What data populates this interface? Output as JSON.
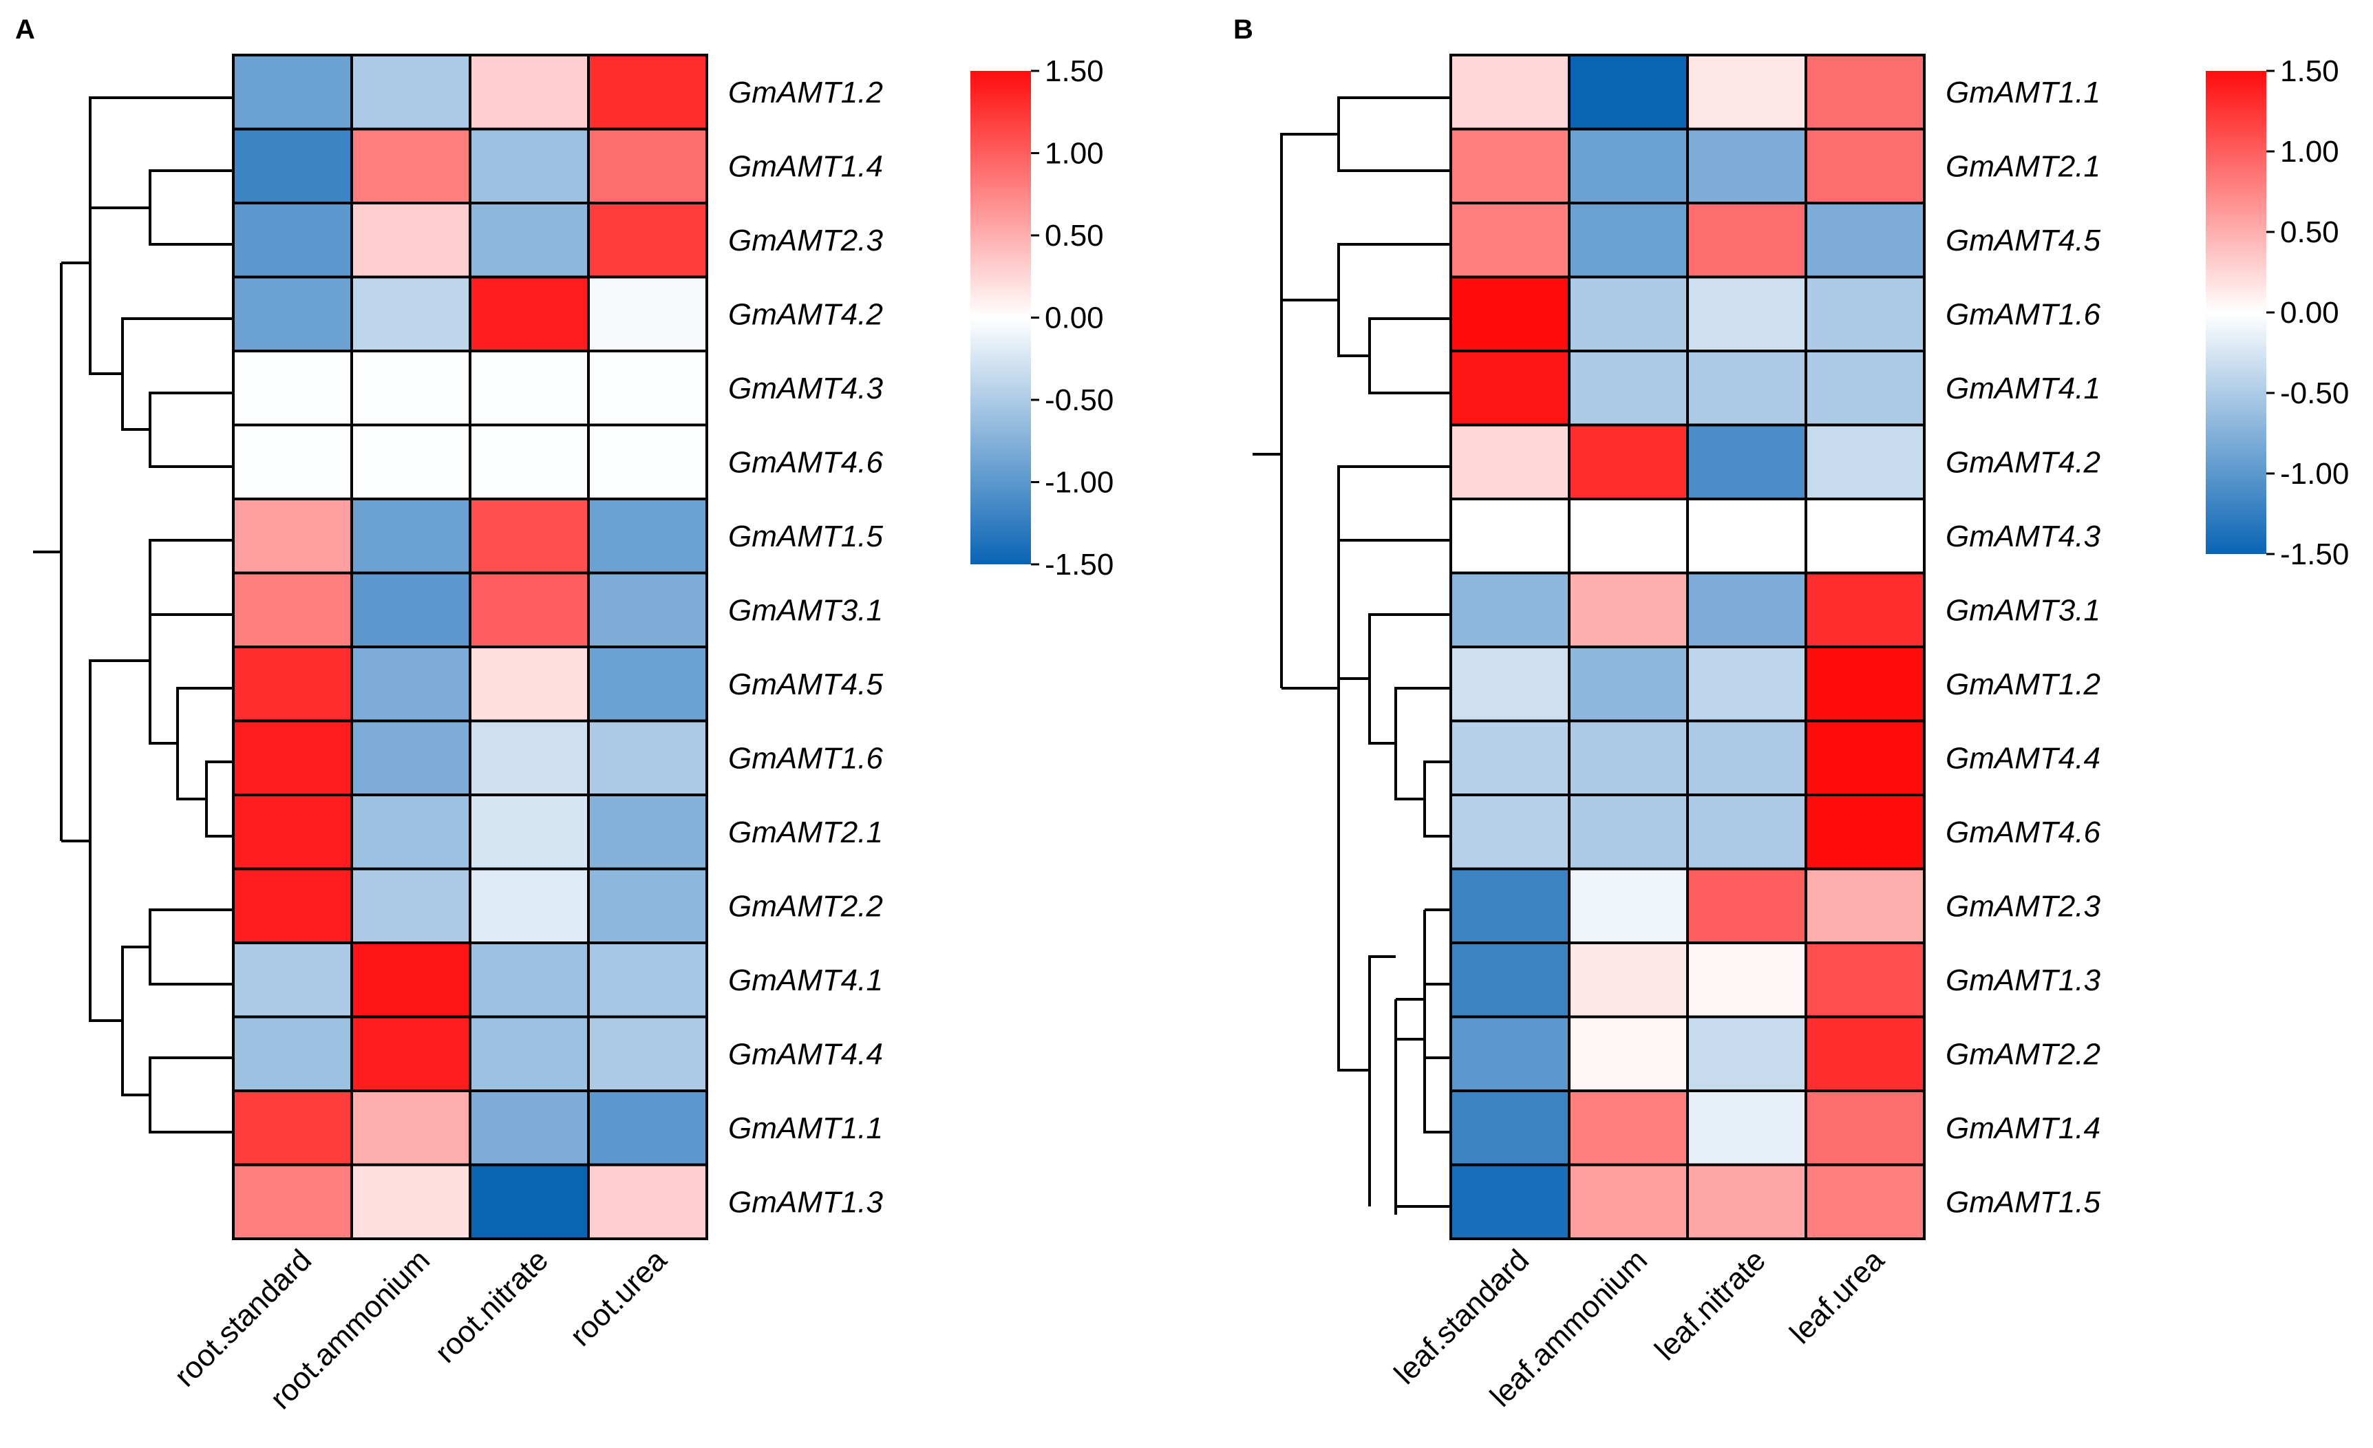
{
  "chart_data": [
    {
      "type": "heatmap",
      "panel_label": "A",
      "columns": [
        "root.standard",
        "root.ammonium",
        "root.nitrate",
        "root.urea"
      ],
      "rows": [
        "GmAMT1.2",
        "GmAMT1.4",
        "GmAMT2.3",
        "GmAMT4.2",
        "GmAMT4.3",
        "GmAMT4.6",
        "GmAMT1.5",
        "GmAMT3.1",
        "GmAMT4.5",
        "GmAMT1.6",
        "GmAMT2.1",
        "GmAMT2.2",
        "GmAMT4.1",
        "GmAMT4.4",
        "GmAMT1.1",
        "GmAMT1.3"
      ],
      "values": [
        [
          -0.9,
          -0.5,
          0.3,
          1.3
        ],
        [
          -1.2,
          0.8,
          -0.6,
          0.9
        ],
        [
          -1.0,
          0.3,
          -0.7,
          1.2
        ],
        [
          -0.9,
          -0.4,
          1.4,
          -0.05
        ],
        [
          -0.02,
          -0.02,
          -0.02,
          -0.02
        ],
        [
          -0.02,
          -0.02,
          -0.02,
          -0.02
        ],
        [
          0.6,
          -0.9,
          1.1,
          -0.9
        ],
        [
          0.8,
          -1.0,
          1.0,
          -0.8
        ],
        [
          1.3,
          -0.8,
          0.2,
          -0.9
        ],
        [
          1.4,
          -0.8,
          -0.3,
          -0.5
        ],
        [
          1.4,
          -0.6,
          -0.25,
          -0.75
        ],
        [
          1.4,
          -0.5,
          -0.2,
          -0.7
        ],
        [
          -0.5,
          1.45,
          -0.6,
          -0.55
        ],
        [
          -0.6,
          1.4,
          -0.6,
          -0.5
        ],
        [
          1.2,
          0.5,
          -0.8,
          -1.0
        ],
        [
          0.8,
          0.2,
          -1.5,
          0.3
        ]
      ],
      "colorbar": {
        "ticks": [
          "1.50",
          "1.00",
          "0.50",
          "0.00",
          "-0.50",
          "-1.00",
          "-1.50"
        ],
        "range": [
          -1.5,
          1.5
        ]
      }
    },
    {
      "type": "heatmap",
      "panel_label": "B",
      "columns": [
        "leaf.standard",
        "leaf.ammonium",
        "leaf.nitrate",
        "leaf.urea"
      ],
      "rows": [
        "GmAMT1.1",
        "GmAMT2.1",
        "GmAMT4.5",
        "GmAMT1.6",
        "GmAMT4.1",
        "GmAMT4.2",
        "GmAMT4.3",
        "GmAMT3.1",
        "GmAMT1.2",
        "GmAMT4.4",
        "GmAMT4.6",
        "GmAMT2.3",
        "GmAMT1.3",
        "GmAMT2.2",
        "GmAMT1.4",
        "GmAMT1.5"
      ],
      "values": [
        [
          0.25,
          -1.5,
          0.15,
          0.9
        ],
        [
          0.8,
          -0.9,
          -0.8,
          0.9
        ],
        [
          0.8,
          -0.9,
          0.9,
          -0.8
        ],
        [
          1.5,
          -0.5,
          -0.3,
          -0.5
        ],
        [
          1.45,
          -0.5,
          -0.5,
          -0.5
        ],
        [
          0.25,
          1.3,
          -1.1,
          -0.35
        ],
        [
          0.0,
          0.0,
          0.0,
          0.0
        ],
        [
          -0.7,
          0.5,
          -0.8,
          1.3
        ],
        [
          -0.3,
          -0.7,
          -0.4,
          1.5
        ],
        [
          -0.45,
          -0.5,
          -0.5,
          1.5
        ],
        [
          -0.45,
          -0.5,
          -0.5,
          1.5
        ],
        [
          -1.2,
          -0.1,
          1.0,
          0.5
        ],
        [
          -1.2,
          0.15,
          0.05,
          1.1
        ],
        [
          -1.0,
          0.05,
          -0.35,
          1.3
        ],
        [
          -1.2,
          0.8,
          -0.15,
          0.9
        ],
        [
          -1.4,
          0.6,
          0.55,
          0.8
        ]
      ],
      "colorbar": {
        "ticks": [
          "1.50",
          "1.00",
          "0.50",
          "0.00",
          "-0.50",
          "-1.00",
          "-1.50"
        ],
        "range": [
          -1.5,
          1.5
        ]
      }
    }
  ]
}
